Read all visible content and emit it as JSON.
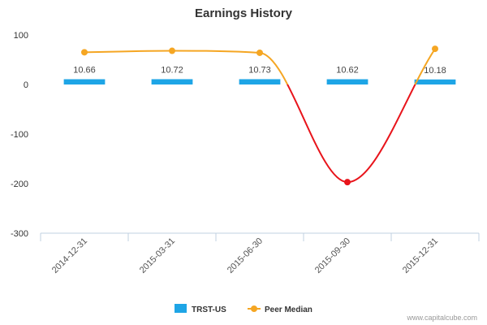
{
  "chart_data": {
    "type": "bar",
    "title": "Earnings History",
    "categories": [
      "2014-12-31",
      "2015-03-31",
      "2015-06-30",
      "2015-09-30",
      "2015-12-31"
    ],
    "series": [
      {
        "name": "TRST-US",
        "kind": "bar",
        "values": [
          10.66,
          10.72,
          10.73,
          10.62,
          10.18
        ],
        "data_labels": [
          "10.66",
          "10.72",
          "10.73",
          "10.62",
          "10.18"
        ],
        "color": "#1ea5e6"
      },
      {
        "name": "Peer Median",
        "kind": "line",
        "values": [
          65,
          68,
          64,
          -197,
          72
        ],
        "color": "#f5a623",
        "negative_color": "#e8141b"
      }
    ],
    "ylim": [
      -300,
      100
    ],
    "yticks": [
      100,
      0,
      -100,
      -200,
      -300
    ],
    "ytick_labels": [
      "100",
      "0",
      "-100",
      "-200",
      "-300"
    ],
    "grid": false,
    "legend_position": "bottom-center",
    "xlabel": "",
    "ylabel": ""
  },
  "credit": "www.capitalcube.com"
}
